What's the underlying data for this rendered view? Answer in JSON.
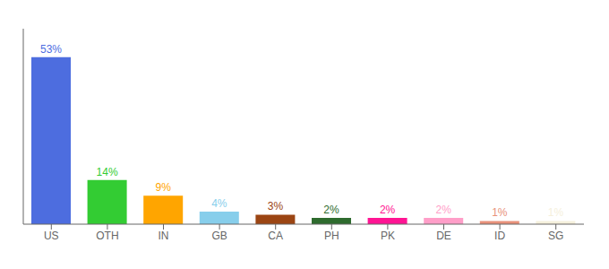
{
  "chart_data": {
    "type": "bar",
    "categories": [
      "US",
      "OTH",
      "IN",
      "GB",
      "CA",
      "PH",
      "PK",
      "DE",
      "ID",
      "SG"
    ],
    "values": [
      53,
      14,
      9,
      4,
      3,
      2,
      2,
      2,
      1,
      1
    ],
    "value_labels": [
      "53%",
      "14%",
      "9%",
      "4%",
      "3%",
      "2%",
      "2%",
      "2%",
      "1%",
      "1%"
    ],
    "colors": [
      "#4d6ddf",
      "#33cc33",
      "#FFA500",
      "#87CEEB",
      "#9B4513",
      "#2E6B2E",
      "#FF1493",
      "#FF9EC8",
      "#E8917A",
      "#F5F0DC"
    ],
    "ylim": [
      0,
      62
    ],
    "data_labels": true,
    "tick_labels": "x",
    "grid": false
  }
}
